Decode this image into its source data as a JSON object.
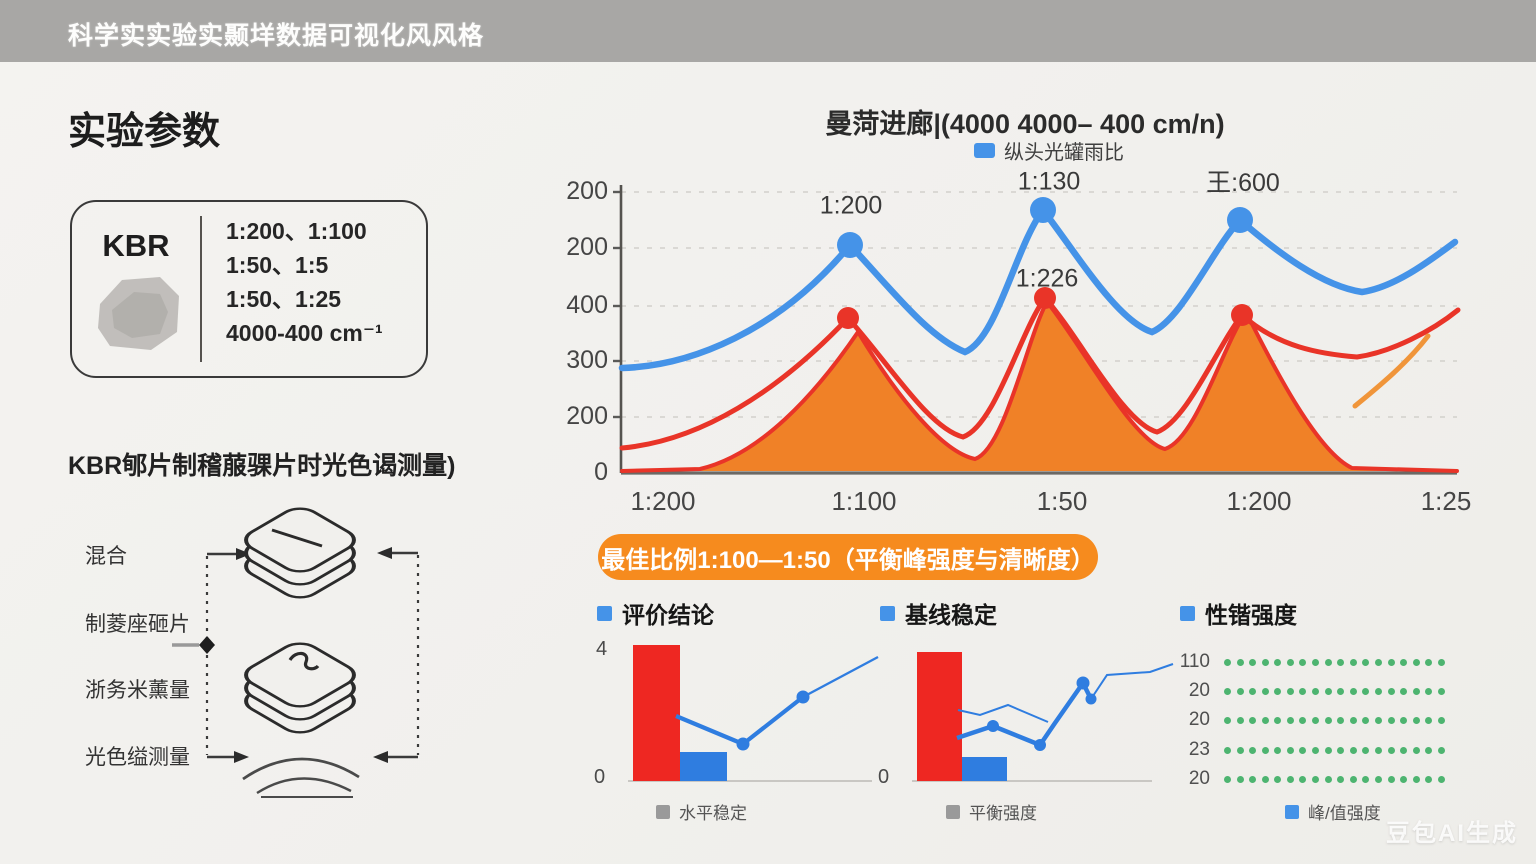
{
  "page": {
    "watermark": "豆包AI生成",
    "bg": "#f1f0ed"
  },
  "header": {
    "title": "科学实实验实颞垟数据可视化风风格",
    "bg": "#a8a7a5"
  },
  "left": {
    "title": "实验参数",
    "kbr": {
      "label": "KBR",
      "lines": [
        "1:200、1:100",
        "1:50、1:5",
        "1:50、1:25",
        "4000-400 cm⁻¹"
      ]
    },
    "flow_title": "KBR郇片制稽菔骒片时光色谒测量)",
    "flow_steps": [
      "混合",
      "制菱座砸片",
      "浙务米薰量",
      "光色缢测量"
    ]
  },
  "main_chart": {
    "title": "曼菏进廊|(4000 4000– 400 cm/n)",
    "legend_label": "纵头光罐雨比",
    "y_ticks": [
      "200",
      "200",
      "400",
      "300",
      "200",
      "0"
    ],
    "x_ticks": [
      "1:200",
      "1:100",
      "1:50",
      "1:200",
      "1:25"
    ],
    "point_labels": [
      "1:200",
      "1:130",
      "1:226",
      "王:600"
    ],
    "colors": {
      "blue": "#4593e8",
      "red": "#e93428",
      "area": "#f08127"
    }
  },
  "banner": {
    "text": "最佳比例1:100—1:50（平衡峰强度与清晰度）",
    "bg": "#f68b1e"
  },
  "mini_charts": [
    {
      "title": "评价结论",
      "y_top": "4",
      "y_zero": "0",
      "legend": "水平稳定"
    },
    {
      "title": "基线稳定",
      "y_zero": "0",
      "legend": "平衡强度"
    },
    {
      "title": "性锴强度",
      "row_labels": [
        "110",
        "20",
        "20",
        "23",
        "20"
      ],
      "legend": "峰/值强度"
    }
  ],
  "chart_data": [
    {
      "type": "line",
      "title": "曼菏进廊|(4000 4000– 400 cm/n)",
      "categories": [
        "1:200",
        "1:100",
        "1:50",
        "1:200",
        "1:25"
      ],
      "series": [
        {
          "name": "纵头光罐雨比",
          "color": "#4593e8",
          "markers": true,
          "values": [
            185,
            395,
            455,
            430,
            395
          ]
        },
        {
          "name": "red-line",
          "color": "#e93428",
          "markers": true,
          "values": [
            45,
            270,
            305,
            275,
            285
          ]
        },
        {
          "name": "orange-area",
          "color": "#f08127",
          "fill": true,
          "values": [
            3,
            245,
            300,
            280,
            8
          ]
        }
      ],
      "y_axis_labels": [
        "200",
        "200",
        "400",
        "300",
        "200",
        "0"
      ],
      "annotations": [
        "1:200",
        "1:130",
        "1:226",
        "王:600"
      ],
      "grid": "dashed-horizontal",
      "legend_position": "top"
    },
    {
      "type": "bar",
      "title": "评价结论",
      "categories": [
        "bar-red",
        "bar-blue"
      ],
      "values": [
        4.0,
        0.85
      ],
      "bar_colors": [
        "#ee2722",
        "#2f7de0"
      ],
      "overlay_line": {
        "color": "#2f7de0",
        "values": [
          2.0,
          1.1,
          2.5,
          3.7
        ]
      },
      "ylabel": "",
      "ylim": [
        0,
        4
      ],
      "legend": "水平稳定"
    },
    {
      "type": "bar",
      "title": "基线稳定",
      "categories": [
        "bar-red",
        "bar-blue"
      ],
      "values": [
        3.8,
        0.7
      ],
      "bar_colors": [
        "#ee2722",
        "#2f7de0"
      ],
      "overlay_line": {
        "color": "#2f7de0",
        "values": [
          1.2,
          1.65,
          1.05,
          2.9,
          2.35
        ]
      },
      "overlay_line_thin": {
        "color": "#2f7de0",
        "values": [
          2.15,
          1.9,
          2.2,
          1.7,
          3.4,
          3.6
        ]
      },
      "ylim": [
        0,
        4
      ],
      "legend": "平衡强度"
    },
    {
      "type": "heatmap",
      "title": "性锴强度",
      "rows": [
        "110",
        "20",
        "20",
        "23",
        "20"
      ],
      "dots_per_row": 18,
      "dot_color": "#4db470",
      "legend": "峰/值强度"
    }
  ]
}
